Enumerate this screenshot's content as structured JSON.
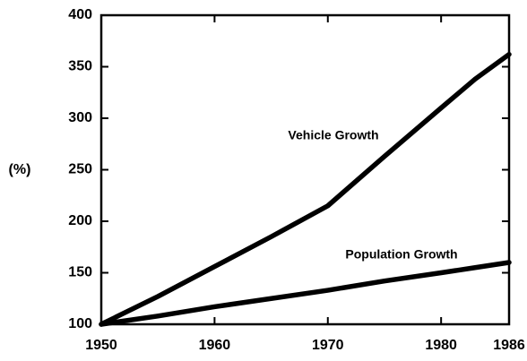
{
  "chart_data": {
    "type": "line",
    "y_label": "(%)",
    "x": [
      1950,
      1955,
      1960,
      1965,
      1970,
      1975,
      1980,
      1983,
      1986
    ],
    "series": [
      {
        "name": "Vehicle Growth",
        "color": "#000000",
        "values": [
          100,
          127,
          156,
          185,
          215,
          263,
          310,
          338,
          362
        ]
      },
      {
        "name": "Population Growth",
        "color": "#000000",
        "values": [
          100,
          108,
          117,
          125,
          133,
          142,
          150,
          155,
          160
        ]
      }
    ],
    "xlim": [
      1950,
      1986
    ],
    "xticks": [
      1950,
      1960,
      1970,
      1980,
      1986
    ],
    "ylim": [
      100,
      400
    ],
    "yticks": [
      100,
      150,
      200,
      250,
      300,
      350,
      400
    ]
  }
}
